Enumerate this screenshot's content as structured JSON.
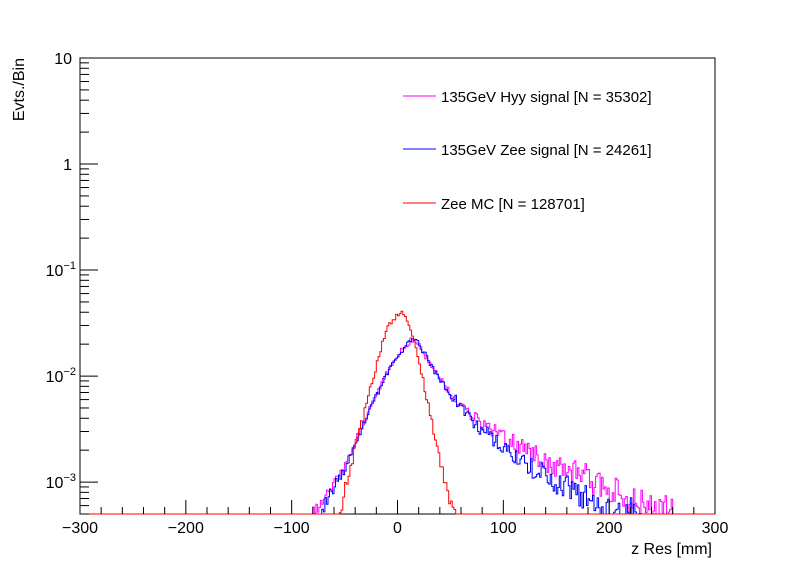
{
  "chart_data": {
    "type": "line",
    "xlabel": "z Res [mm]",
    "ylabel": "Evts./Bin",
    "xlim": [
      -300,
      300
    ],
    "ylim": [
      0.0005,
      10
    ],
    "yscale": "log",
    "grid": false,
    "legend_position": "top-right",
    "x_ticks": [
      -300,
      -200,
      -100,
      0,
      100,
      200,
      300
    ],
    "x_tick_labels": [
      "−300",
      "−200",
      "−100",
      "0",
      "100",
      "200",
      "300"
    ],
    "y_ticks": [
      {
        "value": 10,
        "base": "10",
        "exp": ""
      },
      {
        "value": 1,
        "base": "1",
        "exp": ""
      },
      {
        "value": 0.1,
        "base": "10",
        "exp": "−1"
      },
      {
        "value": 0.01,
        "base": "10",
        "exp": "−2"
      },
      {
        "value": 0.001,
        "base": "10",
        "exp": "−3"
      }
    ],
    "series": [
      {
        "name": "135GeV Hyy signal [N = 35302]",
        "color": "#ff00ff",
        "x": [
          -80,
          -70,
          -60,
          -50,
          -40,
          -30,
          -20,
          -10,
          0,
          10,
          15,
          20,
          30,
          40,
          50,
          60,
          70,
          80,
          90,
          100,
          110,
          120,
          130,
          140,
          150,
          160,
          170,
          180,
          190,
          200,
          210,
          220,
          230,
          240,
          250,
          260
        ],
        "y": [
          0.0005,
          0.0007,
          0.001,
          0.0015,
          0.0025,
          0.0042,
          0.0068,
          0.011,
          0.016,
          0.021,
          0.022,
          0.019,
          0.0135,
          0.0095,
          0.007,
          0.0052,
          0.0042,
          0.0035,
          0.003,
          0.0026,
          0.0023,
          0.002,
          0.0018,
          0.0016,
          0.0014,
          0.0013,
          0.0012,
          0.0011,
          0.00095,
          0.00085,
          0.00075,
          0.00068,
          0.0006,
          0.00055,
          0.0005,
          0.0005
        ]
      },
      {
        "name": "135GeV Zee signal [N = 24261]",
        "color": "#0000ff",
        "x": [
          -75,
          -70,
          -60,
          -50,
          -40,
          -30,
          -20,
          -10,
          0,
          10,
          15,
          20,
          30,
          40,
          50,
          60,
          70,
          80,
          90,
          100,
          110,
          120,
          130,
          140,
          150,
          160,
          170,
          180,
          190,
          200,
          210,
          220,
          230
        ],
        "y": [
          0.0005,
          0.0006,
          0.0009,
          0.0014,
          0.0024,
          0.0041,
          0.0067,
          0.0108,
          0.0158,
          0.021,
          0.023,
          0.0195,
          0.0135,
          0.0093,
          0.0067,
          0.0049,
          0.0038,
          0.0031,
          0.0026,
          0.0021,
          0.0018,
          0.0015,
          0.0013,
          0.00115,
          0.001,
          0.00088,
          0.00076,
          0.00066,
          0.00058,
          0.0005,
          0.0005,
          0.0005,
          0.0005
        ]
      },
      {
        "name": "Zee MC [N = 128701]",
        "color": "#ff0000",
        "x": [
          -55,
          -50,
          -45,
          -40,
          -35,
          -30,
          -25,
          -20,
          -15,
          -10,
          -5,
          0,
          5,
          10,
          15,
          20,
          25,
          30,
          35,
          40,
          45,
          50,
          55
        ],
        "y": [
          0.0005,
          0.0009,
          0.0014,
          0.0022,
          0.0035,
          0.0055,
          0.0085,
          0.0135,
          0.02,
          0.028,
          0.035,
          0.039,
          0.038,
          0.032,
          0.022,
          0.013,
          0.0075,
          0.0043,
          0.0025,
          0.0015,
          0.0009,
          0.0006,
          0.0005
        ]
      }
    ]
  }
}
